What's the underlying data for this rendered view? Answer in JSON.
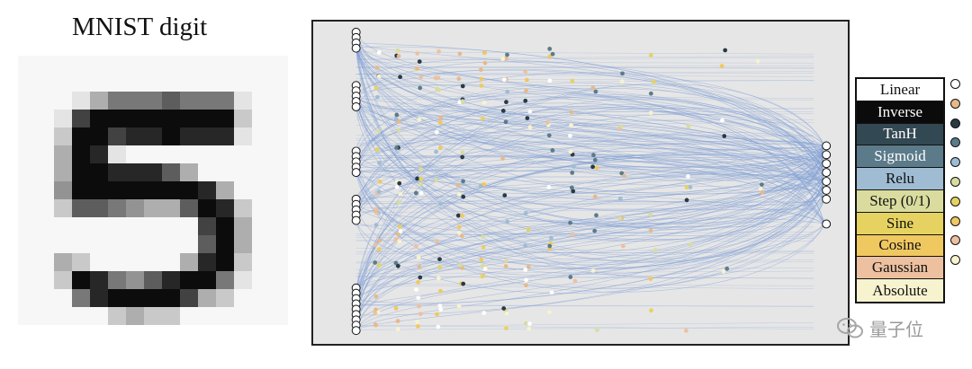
{
  "title": "MNIST digit",
  "legend": [
    {
      "label": "Linear",
      "color": "#ffffff",
      "text": "#111111",
      "dot": "#ffffff"
    },
    {
      "label": "Inverse",
      "color": "#0b0b0b",
      "text": "#ffffff",
      "dot": "#e7b98a"
    },
    {
      "label": "TanH",
      "color": "#324852",
      "text": "#ffffff",
      "dot": "#2a3a44"
    },
    {
      "label": "Sigmoid",
      "color": "#5c7b8a",
      "text": "#ffffff",
      "dot": "#5c7b8a"
    },
    {
      "label": "Relu",
      "color": "#9fbcd2",
      "text": "#111111",
      "dot": "#9fbcd2"
    },
    {
      "label": "Step (0/1)",
      "color": "#d9dc9e",
      "text": "#111111",
      "dot": "#d9dc9e"
    },
    {
      "label": "Sine",
      "color": "#e6d260",
      "text": "#111111",
      "dot": "#e6d260"
    },
    {
      "label": "Cosine",
      "color": "#f0c860",
      "text": "#111111",
      "dot": "#f0c860"
    },
    {
      "label": "Gaussian",
      "color": "#edc0a0",
      "text": "#111111",
      "dot": "#edc0a0"
    },
    {
      "label": "Absolute",
      "color": "#f7f3cf",
      "text": "#111111",
      "dot": "#f7f3cf"
    }
  ],
  "watermark": "量子位",
  "edge_color": "#7f9fd6"
}
